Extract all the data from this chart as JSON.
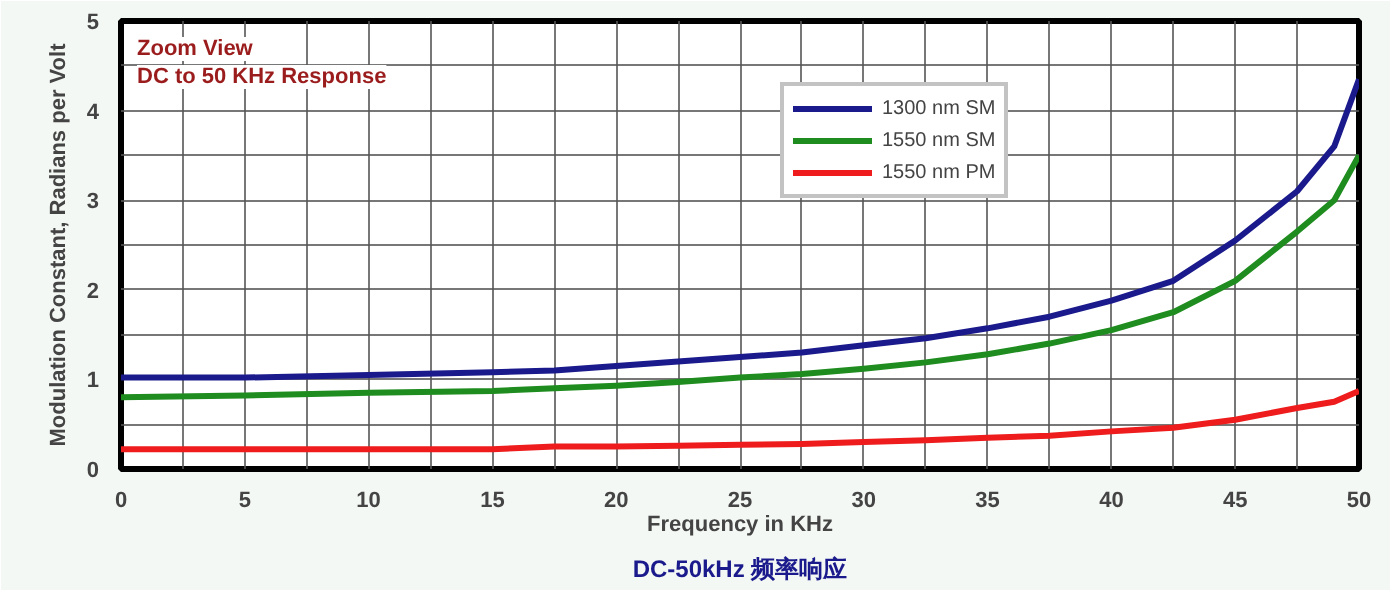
{
  "chart_data": {
    "type": "line",
    "xlabel": "Frequency in KHz",
    "ylabel": "Modulation Constant, Radians per Volt",
    "annotations": [
      "Zoom View",
      "DC to 50 KHz Response",
      "DC-50kHz 频率响应"
    ],
    "x": [
      0,
      5,
      10,
      15,
      17.5,
      20,
      22.5,
      25,
      27.5,
      30,
      32.5,
      35,
      37.5,
      40,
      42.5,
      45,
      47.5,
      49,
      50
    ],
    "series": [
      {
        "name": "1300 nm SM",
        "color": "#1a1a8c",
        "values": [
          1.02,
          1.02,
          1.05,
          1.08,
          1.1,
          1.15,
          1.2,
          1.25,
          1.3,
          1.38,
          1.46,
          1.57,
          1.7,
          1.88,
          2.1,
          2.55,
          3.1,
          3.6,
          4.35
        ]
      },
      {
        "name": "1550 nm SM",
        "color": "#1e8c1e",
        "values": [
          0.8,
          0.82,
          0.85,
          0.87,
          0.9,
          0.93,
          0.97,
          1.02,
          1.06,
          1.12,
          1.19,
          1.28,
          1.4,
          1.55,
          1.75,
          2.1,
          2.65,
          3.0,
          3.5
        ]
      },
      {
        "name": "1550 nm PM",
        "color": "#ee1c1c",
        "values": [
          0.22,
          0.22,
          0.22,
          0.22,
          0.25,
          0.25,
          0.26,
          0.27,
          0.28,
          0.3,
          0.32,
          0.35,
          0.37,
          0.42,
          0.46,
          0.55,
          0.68,
          0.75,
          0.87
        ]
      }
    ],
    "xlim": [
      0,
      50
    ],
    "ylim": [
      0,
      5
    ],
    "xticks": [
      0,
      {
        "value": 2.5,
        "label": null
      },
      5,
      {
        "value": 7.5,
        "label": null
      },
      10,
      {
        "value": 12.5,
        "label": null
      },
      15,
      {
        "value": 17.5,
        "label": null
      },
      20,
      {
        "value": 22.5,
        "label": null
      },
      25,
      {
        "value": 27.5,
        "label": null
      },
      30,
      {
        "value": 32.5,
        "label": null
      },
      35,
      {
        "value": 37.5,
        "label": null
      },
      40,
      {
        "value": 42.5,
        "label": null
      },
      45,
      {
        "value": 47.5,
        "label": null
      },
      50
    ],
    "yticks": [
      0,
      {
        "value": 0.5,
        "label": null
      },
      1,
      {
        "value": 1.5,
        "label": null
      },
      2,
      {
        "value": 2.5,
        "label": null
      },
      3,
      {
        "value": 3.5,
        "label": null
      },
      4,
      {
        "value": 4.5,
        "label": null
      },
      5
    ],
    "grid": true,
    "legend": "top",
    "marker": "none",
    "line_style": "solid"
  }
}
